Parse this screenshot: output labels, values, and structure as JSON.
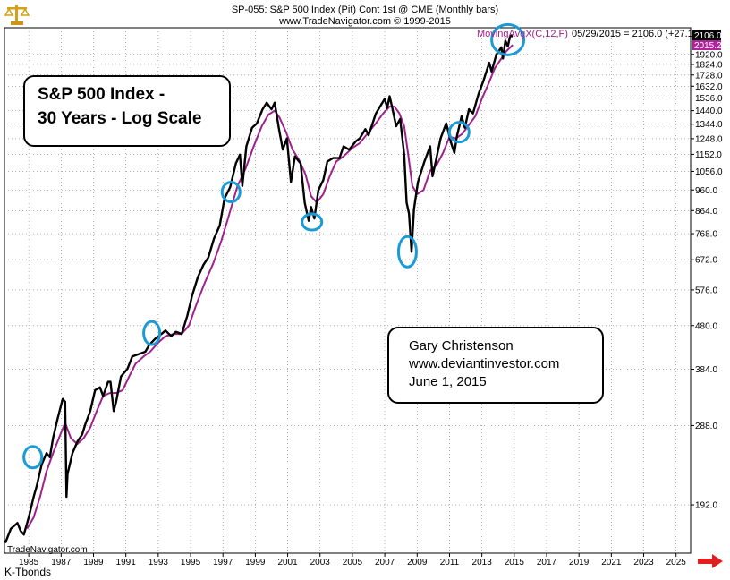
{
  "header": {
    "line1": "SP-055:  S&P 500 Index (Pit) Cont 1st @ CME  (Monthly bars)",
    "line2": "www.TradeNavigator.com © 1999-2015"
  },
  "legend": {
    "indicator": "MovingAvgX(C,12,F)",
    "readout": "05/29/2015 = 2106.0 (+27.1)",
    "last_price_tag": "2106.0",
    "ma_tag": "2015.2",
    "price_tag_color": "#000000",
    "ma_tag_color": "#b0229a"
  },
  "title_box": {
    "line1": "S&P 500 Index -",
    "line2": "30 Years - Log Scale"
  },
  "author_box": {
    "line1": "Gary Christenson",
    "line2": "www.deviantinvestor.com",
    "line3": "June 1, 2015"
  },
  "watermark": "TradeNavigator.com",
  "footer": "K-Tbonds",
  "colors": {
    "price": "#000000",
    "moving_average": "#a0208c",
    "circles": "#1a9ad6",
    "arrow": "#e02020"
  },
  "icons": {
    "logo": "golden-scale-icon",
    "scroll": "right-arrow-icon"
  },
  "chart_data": {
    "type": "line",
    "y_scale": "log",
    "grid": true,
    "xlim": [
      1984.0,
      2026.4
    ],
    "ylim": [
      150,
      2200
    ],
    "x_ticks": [
      "1985",
      "1987",
      "1989",
      "1991",
      "1993",
      "1995",
      "1997",
      "1999",
      "2001",
      "2003",
      "2005",
      "2007",
      "2009",
      "2011",
      "2013",
      "2015",
      "2017",
      "2019",
      "2021",
      "2023",
      "2025"
    ],
    "y_ticks": [
      "192.0",
      "288.0",
      "384.0",
      "480.0",
      "576.0",
      "672.0",
      "768.0",
      "864.0",
      "960.0",
      "1056.0",
      "1152.0",
      "1248.0",
      "1344.0",
      "1440.0",
      "1536.0",
      "1632.0",
      "1728.0",
      "1824.0",
      "1920.0"
    ],
    "series": [
      {
        "kind": "price",
        "points": [
          [
            1984.05,
            158
          ],
          [
            1984.4,
            170
          ],
          [
            1984.8,
            175
          ],
          [
            1985.0,
            168
          ],
          [
            1985.2,
            165
          ],
          [
            1985.5,
            180
          ],
          [
            1985.8,
            200
          ],
          [
            1986.0,
            212
          ],
          [
            1986.3,
            236
          ],
          [
            1986.6,
            250
          ],
          [
            1986.8,
            245
          ],
          [
            1987.0,
            270
          ],
          [
            1987.3,
            300
          ],
          [
            1987.6,
            330
          ],
          [
            1987.75,
            325
          ],
          [
            1987.83,
            200
          ],
          [
            1987.9,
            225
          ],
          [
            1988.2,
            250
          ],
          [
            1988.5,
            265
          ],
          [
            1988.8,
            275
          ],
          [
            1989.0,
            290
          ],
          [
            1989.3,
            310
          ],
          [
            1989.6,
            345
          ],
          [
            1989.9,
            350
          ],
          [
            1990.1,
            335
          ],
          [
            1990.4,
            360
          ],
          [
            1990.55,
            360
          ],
          [
            1990.75,
            310
          ],
          [
            1990.9,
            325
          ],
          [
            1991.2,
            370
          ],
          [
            1991.6,
            385
          ],
          [
            1991.9,
            410
          ],
          [
            1992.3,
            415
          ],
          [
            1992.7,
            420
          ],
          [
            1992.95,
            435
          ],
          [
            1993.3,
            448
          ],
          [
            1993.7,
            460
          ],
          [
            1993.95,
            468
          ],
          [
            1994.3,
            455
          ],
          [
            1994.6,
            465
          ],
          [
            1994.95,
            460
          ],
          [
            1995.3,
            505
          ],
          [
            1995.6,
            560
          ],
          [
            1995.95,
            615
          ],
          [
            1996.3,
            655
          ],
          [
            1996.6,
            680
          ],
          [
            1996.95,
            750
          ],
          [
            1997.3,
            800
          ],
          [
            1997.6,
            920
          ],
          [
            1997.8,
            950
          ],
          [
            1997.95,
            975
          ],
          [
            1998.3,
            1100
          ],
          [
            1998.55,
            1150
          ],
          [
            1998.7,
            980
          ],
          [
            1998.95,
            1200
          ],
          [
            1999.3,
            1320
          ],
          [
            1999.6,
            1350
          ],
          [
            1999.95,
            1450
          ],
          [
            2000.2,
            1500
          ],
          [
            2000.5,
            1450
          ],
          [
            2000.7,
            1500
          ],
          [
            2000.95,
            1320
          ],
          [
            2001.2,
            1180
          ],
          [
            2001.45,
            1250
          ],
          [
            2001.7,
            1000
          ],
          [
            2001.95,
            1140
          ],
          [
            2002.3,
            1100
          ],
          [
            2002.55,
            900
          ],
          [
            2002.8,
            820
          ],
          [
            2002.95,
            880
          ],
          [
            2003.15,
            830
          ],
          [
            2003.4,
            960
          ],
          [
            2003.7,
            1010
          ],
          [
            2003.95,
            1110
          ],
          [
            2004.3,
            1130
          ],
          [
            2004.7,
            1130
          ],
          [
            2004.95,
            1200
          ],
          [
            2005.3,
            1180
          ],
          [
            2005.7,
            1230
          ],
          [
            2005.95,
            1250
          ],
          [
            2006.3,
            1310
          ],
          [
            2006.5,
            1270
          ],
          [
            2006.95,
            1420
          ],
          [
            2007.3,
            1490
          ],
          [
            2007.5,
            1530
          ],
          [
            2007.65,
            1460
          ],
          [
            2007.8,
            1550
          ],
          [
            2007.95,
            1470
          ],
          [
            2008.2,
            1330
          ],
          [
            2008.45,
            1380
          ],
          [
            2008.7,
            1150
          ],
          [
            2008.85,
            900
          ],
          [
            2009.0,
            850
          ],
          [
            2009.15,
            700
          ],
          [
            2009.3,
            870
          ],
          [
            2009.55,
            1000
          ],
          [
            2009.95,
            1110
          ],
          [
            2010.3,
            1200
          ],
          [
            2010.45,
            1030
          ],
          [
            2010.6,
            1090
          ],
          [
            2010.95,
            1250
          ],
          [
            2011.3,
            1350
          ],
          [
            2011.6,
            1220
          ],
          [
            2011.8,
            1160
          ],
          [
            2011.95,
            1260
          ],
          [
            2012.25,
            1400
          ],
          [
            2012.45,
            1320
          ],
          [
            2012.7,
            1450
          ],
          [
            2012.95,
            1420
          ],
          [
            2013.3,
            1570
          ],
          [
            2013.6,
            1680
          ],
          [
            2013.95,
            1840
          ],
          [
            2014.1,
            1760
          ],
          [
            2014.4,
            1920
          ],
          [
            2014.7,
            1990
          ],
          [
            2014.8,
            1880
          ],
          [
            2014.95,
            2060
          ],
          [
            2015.1,
            2000
          ],
          [
            2015.25,
            2110
          ],
          [
            2015.41,
            2106
          ]
        ]
      },
      {
        "kind": "moving_average",
        "points": [
          [
            1985.4,
            170
          ],
          [
            1985.8,
            180
          ],
          [
            1986.2,
            200
          ],
          [
            1986.6,
            228
          ],
          [
            1987.0,
            250
          ],
          [
            1987.4,
            272
          ],
          [
            1987.75,
            292
          ],
          [
            1988.1,
            270
          ],
          [
            1988.5,
            262
          ],
          [
            1988.9,
            270
          ],
          [
            1989.3,
            285
          ],
          [
            1989.7,
            310
          ],
          [
            1990.1,
            335
          ],
          [
            1990.5,
            340
          ],
          [
            1990.9,
            340
          ],
          [
            1991.3,
            345
          ],
          [
            1991.7,
            370
          ],
          [
            1992.1,
            395
          ],
          [
            1992.6,
            410
          ],
          [
            1993.0,
            420
          ],
          [
            1993.5,
            440
          ],
          [
            1993.95,
            455
          ],
          [
            1994.5,
            460
          ],
          [
            1994.95,
            460
          ],
          [
            1995.4,
            480
          ],
          [
            1995.9,
            540
          ],
          [
            1996.4,
            600
          ],
          [
            1996.9,
            660
          ],
          [
            1997.4,
            740
          ],
          [
            1997.9,
            850
          ],
          [
            1998.4,
            980
          ],
          [
            1998.9,
            1070
          ],
          [
            1999.4,
            1200
          ],
          [
            1999.9,
            1330
          ],
          [
            2000.3,
            1410
          ],
          [
            2000.7,
            1440
          ],
          [
            2001.0,
            1390
          ],
          [
            2001.4,
            1290
          ],
          [
            2001.8,
            1180
          ],
          [
            2002.2,
            1120
          ],
          [
            2002.6,
            1040
          ],
          [
            2002.95,
            930
          ],
          [
            2003.3,
            900
          ],
          [
            2003.7,
            940
          ],
          [
            2004.1,
            1030
          ],
          [
            2004.5,
            1110
          ],
          [
            2004.95,
            1140
          ],
          [
            2005.5,
            1190
          ],
          [
            2005.95,
            1220
          ],
          [
            2006.5,
            1290
          ],
          [
            2006.95,
            1350
          ],
          [
            2007.4,
            1420
          ],
          [
            2007.8,
            1470
          ],
          [
            2008.1,
            1470
          ],
          [
            2008.4,
            1420
          ],
          [
            2008.7,
            1330
          ],
          [
            2008.95,
            1150
          ],
          [
            2009.2,
            980
          ],
          [
            2009.5,
            940
          ],
          [
            2009.9,
            960
          ],
          [
            2010.3,
            1060
          ],
          [
            2010.7,
            1090
          ],
          [
            2011.1,
            1160
          ],
          [
            2011.5,
            1260
          ],
          [
            2011.9,
            1250
          ],
          [
            2012.3,
            1280
          ],
          [
            2012.7,
            1340
          ],
          [
            2013.1,
            1400
          ],
          [
            2013.5,
            1530
          ],
          [
            2013.9,
            1650
          ],
          [
            2014.3,
            1790
          ],
          [
            2014.7,
            1880
          ],
          [
            2015.0,
            1950
          ],
          [
            2015.41,
            2015
          ]
        ]
      }
    ],
    "annotations": [
      {
        "shape": "circle",
        "x": 1985.75,
        "y": 245
      },
      {
        "shape": "circle",
        "x": 1993.1,
        "y": 462
      },
      {
        "shape": "circle",
        "x": 1998.0,
        "y": 950
      },
      {
        "shape": "circle",
        "x": 2003.0,
        "y": 815
      },
      {
        "shape": "circle",
        "x": 2008.9,
        "y": 700
      },
      {
        "shape": "circle",
        "x": 2012.1,
        "y": 1290
      },
      {
        "shape": "circle",
        "x": 2015.1,
        "y": 2070
      }
    ]
  }
}
